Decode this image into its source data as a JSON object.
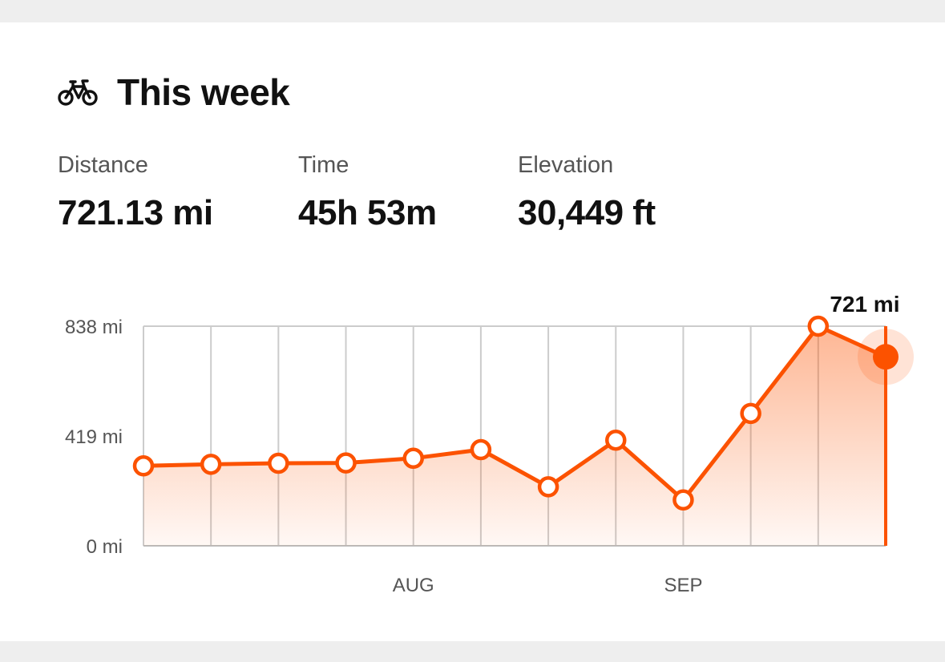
{
  "card": {
    "title": "This week",
    "icon": "bike-icon"
  },
  "stats": [
    {
      "label": "Distance",
      "value": "721.13 mi"
    },
    {
      "label": "Time",
      "value": "45h 53m"
    },
    {
      "label": "Elevation",
      "value": "30,449 ft"
    }
  ],
  "colors": {
    "accent": "#fc5200",
    "grid": "#cccccc",
    "text_primary": "#111111",
    "text_secondary": "#555555"
  },
  "chart_data": {
    "type": "line",
    "x_tick_labels": [
      "",
      "",
      "",
      "",
      "AUG",
      "",
      "",
      "",
      "SEP",
      "",
      "",
      ""
    ],
    "y_ticks": [
      {
        "value": 838,
        "label": "838 mi"
      },
      {
        "value": 419,
        "label": "419 mi"
      },
      {
        "value": 0,
        "label": "0 mi"
      }
    ],
    "ylim": [
      0,
      838
    ],
    "values": [
      305,
      311,
      315,
      316,
      334,
      367,
      225,
      403,
      175,
      505,
      838,
      721
    ],
    "highlight_index": 11,
    "highlight_label": "721 mi",
    "area_fill": true,
    "grid": true
  }
}
